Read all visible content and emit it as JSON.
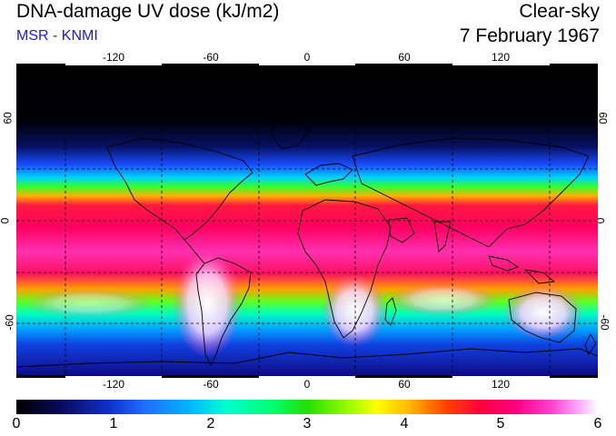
{
  "header": {
    "title": "DNA-damage UV dose (kJ/m2)",
    "source": "MSR - KNMI",
    "condition": "Clear-sky",
    "date": "7 February 1967"
  },
  "map": {
    "projection": "equirectangular",
    "longitude_ticks": [
      "-120",
      "-60",
      "0",
      "60",
      "120"
    ],
    "latitude_ticks_left": [
      "60",
      "0",
      "-60"
    ],
    "latitude_ticks_right": [
      "60",
      "0",
      "-60"
    ],
    "gridlines": "dashed"
  },
  "colorbar": {
    "min": 0,
    "max": 6,
    "labels": [
      "0",
      "1",
      "2",
      "3",
      "4",
      "5",
      "6"
    ],
    "colors": [
      "#000000",
      "#1030c8",
      "#00b8ff",
      "#22e000",
      "#ffff00",
      "#ff0040",
      "#ffffff"
    ]
  }
}
